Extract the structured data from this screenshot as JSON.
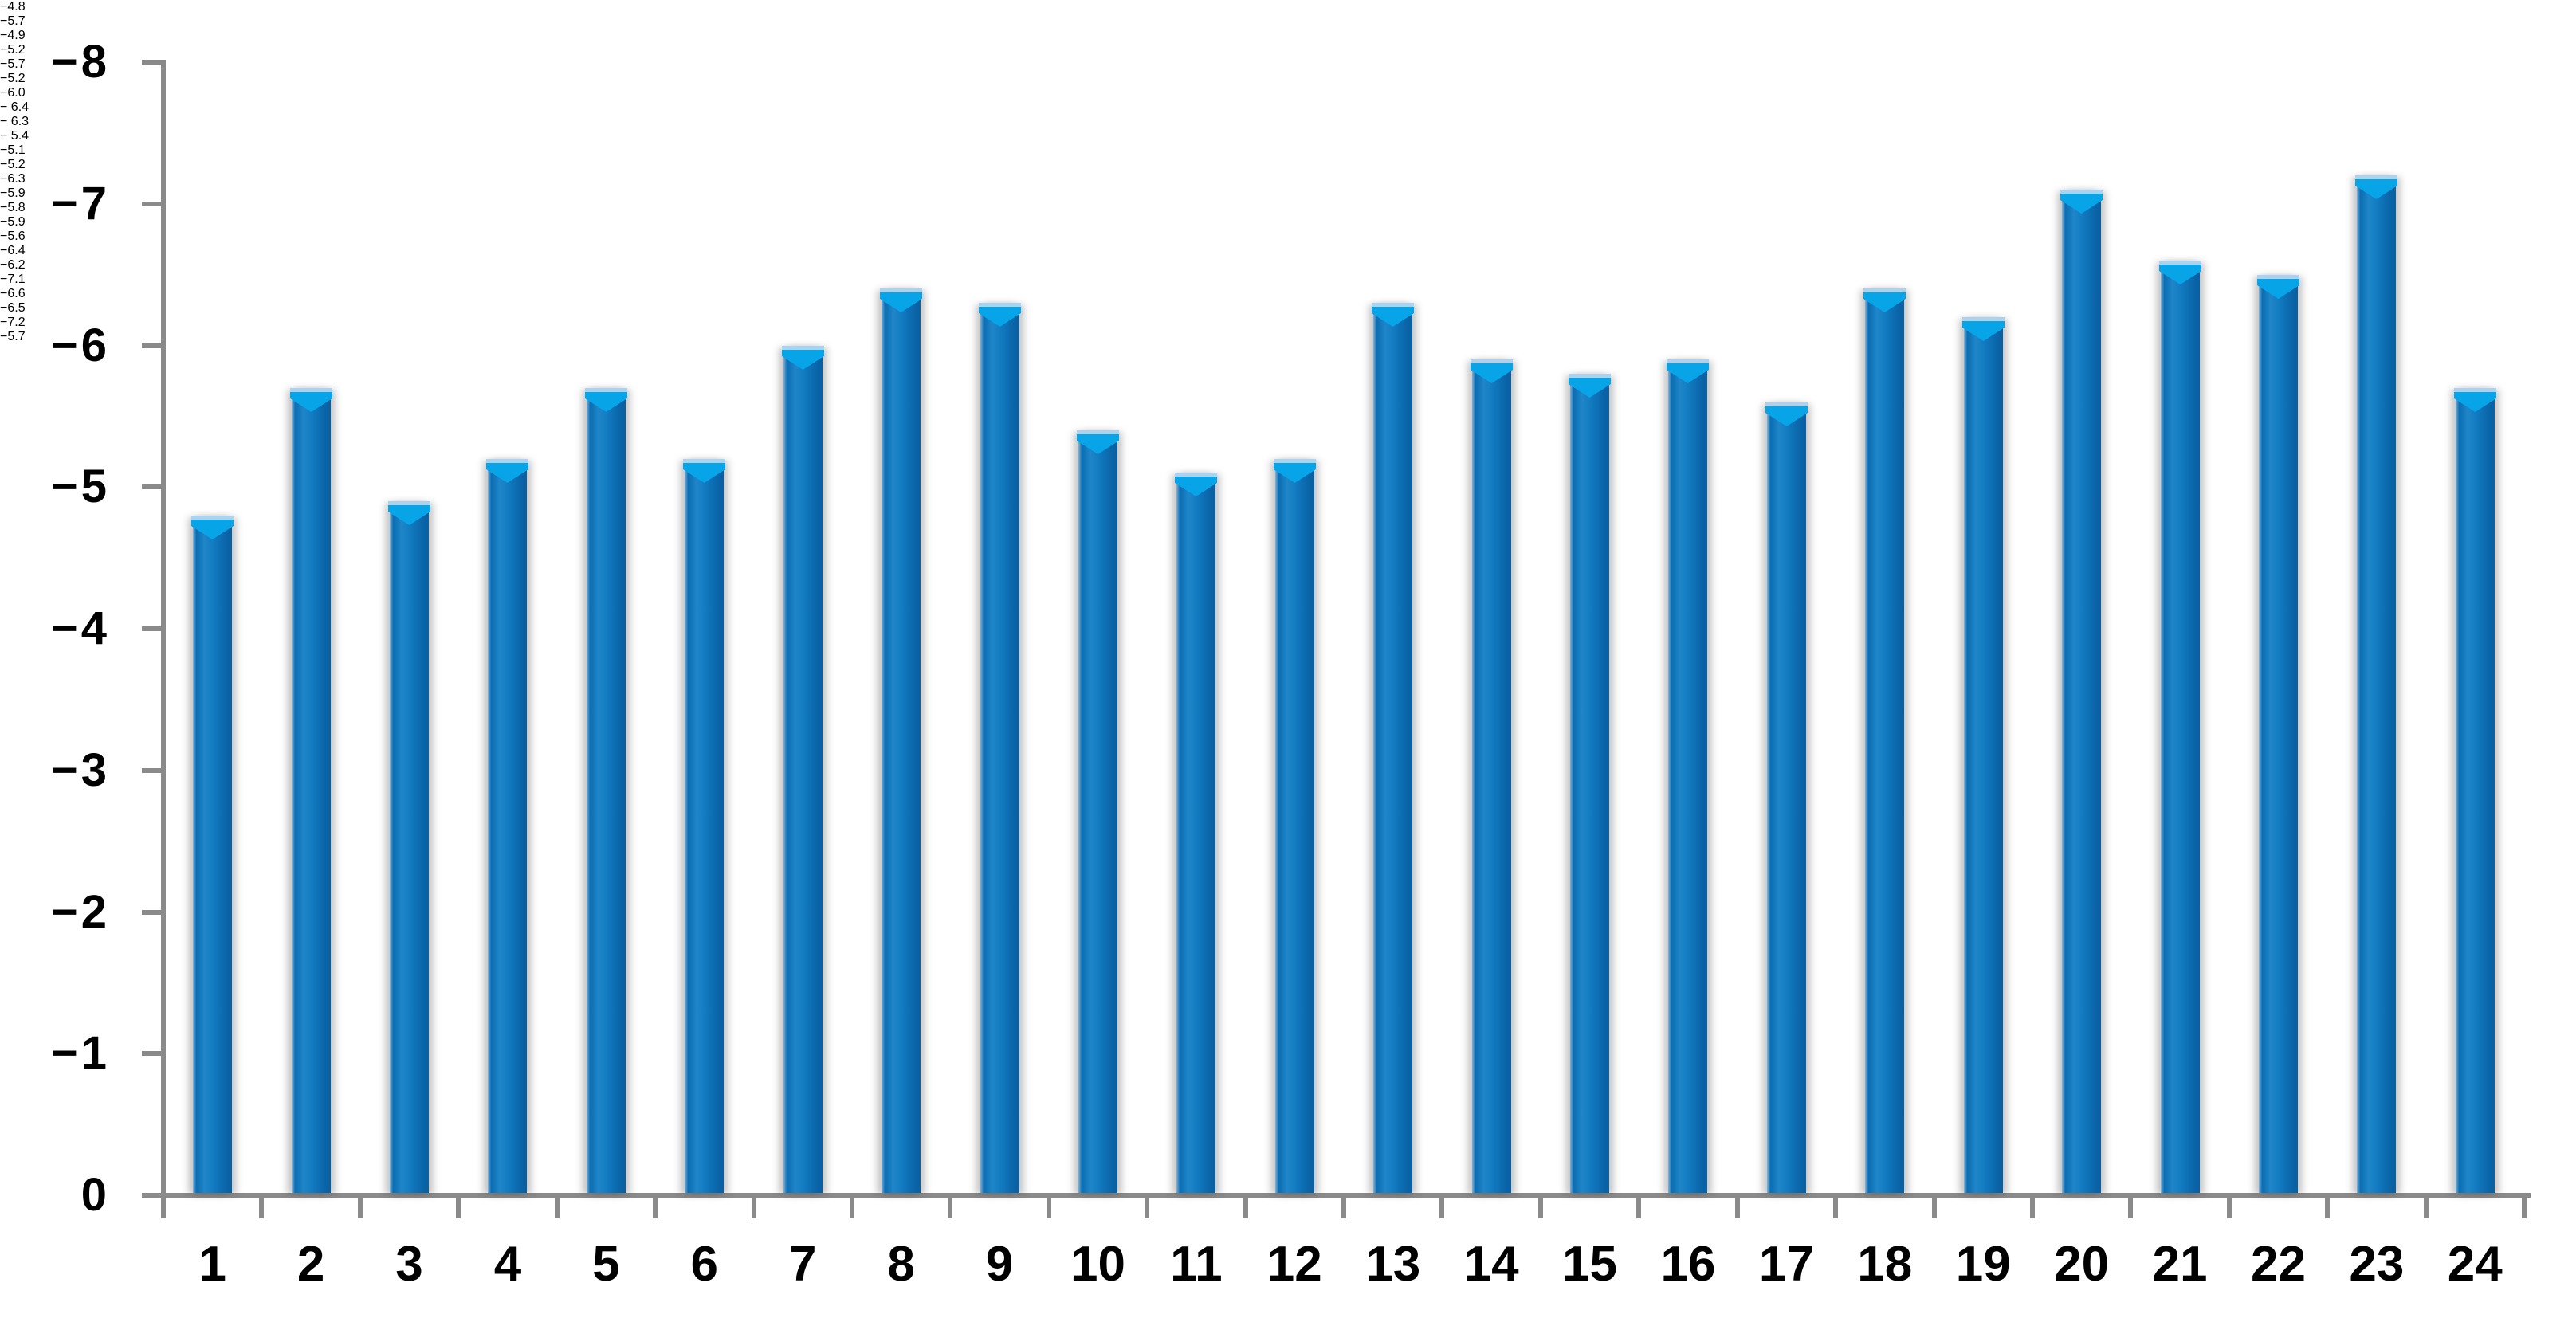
{
  "chart_data": {
    "type": "bar",
    "title": "",
    "xlabel": "",
    "ylabel": "",
    "categories": [
      "1",
      "2",
      "3",
      "4",
      "5",
      "6",
      "7",
      "8",
      "9",
      "10",
      "11",
      "12",
      "13",
      "14",
      "15",
      "16",
      "17",
      "18",
      "19",
      "20",
      "21",
      "22",
      "23",
      "24"
    ],
    "values": [
      -4.8,
      -5.7,
      -4.9,
      -5.2,
      -5.7,
      -5.2,
      -6.0,
      -6.4,
      -6.3,
      -5.4,
      -5.1,
      -5.2,
      -6.3,
      -5.9,
      -5.8,
      -5.9,
      -5.6,
      -6.4,
      -6.2,
      -7.1,
      -6.6,
      -6.5,
      -7.2,
      -5.7
    ],
    "bar_labels": [
      "−4.8",
      "−5.7",
      "−4.9",
      "−5.2",
      "−5.7",
      "−5.2",
      "−6.0",
      "− 6.4",
      "− 6.3",
      "− 5.4",
      "−5.1",
      "−5.2",
      "−6.3",
      "−5.9",
      "−5.8",
      "−5.9",
      "−5.6",
      "−6.4",
      "−6.2",
      "−7.1",
      "−6.6",
      "−6.5",
      "−7.2",
      "−5.7"
    ],
    "yticks": {
      "values": [
        0,
        -1,
        -2,
        -3,
        -4,
        -5,
        -6,
        -7,
        -8
      ],
      "labels": [
        "0",
        "−1",
        "−2",
        "−3",
        "−4",
        "−5",
        "−6",
        "−7",
        "−8"
      ]
    },
    "ylim": [
      0,
      -8
    ],
    "axis_inverted": true,
    "grid": false,
    "legend": null,
    "colors": {
      "bar_body": "#0d72b9",
      "bar_body_highlight": "#1e86c8",
      "bar_body_dark": "#0a64a8",
      "bar_cap_v": "#07a5e8",
      "bar_cap_strip": "#abd2ee",
      "axis": "#8a8a8a",
      "text": "#000000",
      "background": "#ffffff"
    }
  }
}
